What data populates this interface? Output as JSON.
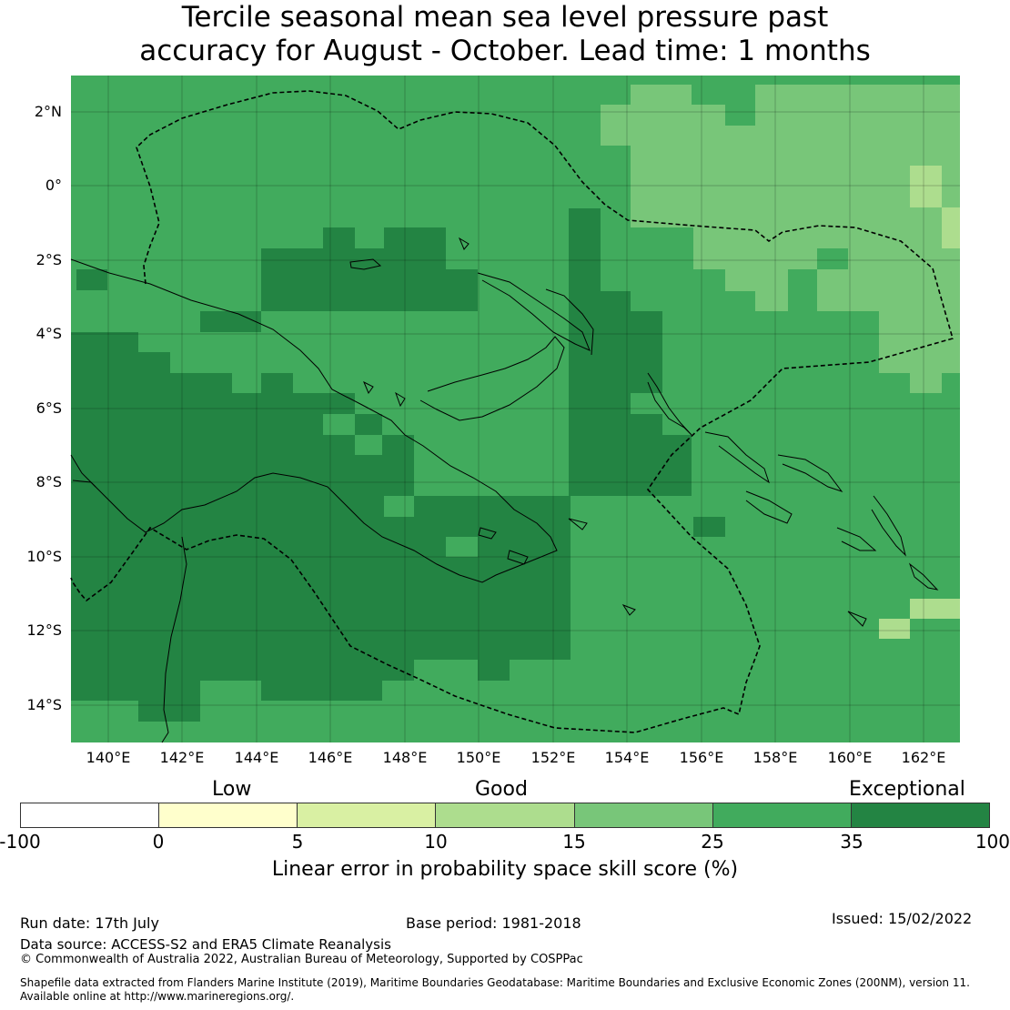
{
  "title": {
    "line1": "Tercile seasonal mean sea level pressure past",
    "line2": "accuracy for August - October. Lead time: 1 months"
  },
  "map": {
    "lon_labels": [
      "140°E",
      "142°E",
      "144°E",
      "146°E",
      "148°E",
      "150°E",
      "152°E",
      "154°E",
      "156°E",
      "158°E",
      "160°E",
      "162°E"
    ],
    "lat_labels": [
      "2°N",
      "0°",
      "2°S",
      "4°S",
      "6°S",
      "8°S",
      "10°S",
      "12°S",
      "14°S"
    ],
    "extent": {
      "lon": [
        139,
        163
      ],
      "lat": [
        -15,
        3
      ]
    }
  },
  "colorbar": {
    "categories": [
      "Low",
      "Good",
      "Exceptional"
    ],
    "ticks": [
      "-100",
      "0",
      "5",
      "10",
      "15",
      "25",
      "35",
      "100"
    ],
    "colors": [
      "#ffffff",
      "#ffffcc",
      "#d9f0a3",
      "#addd8e",
      "#78c679",
      "#41ab5d",
      "#238443"
    ],
    "label": "Linear error in probability space skill score (%)"
  },
  "footer": {
    "run_date": "Run date: 17th July",
    "base_period": "Base period: 1981-2018",
    "issued": "Issued: 15/02/2022",
    "data_source": "Data source: ACCESS-S2 and ERA5 Climate Reanalysis",
    "copyright": "© Commonwealth of Australia 2022, Australian Bureau of Meteorology, Supported by COSPPac",
    "shapefile1": "Shapefile data extracted from Flanders Marine Institute (2019), Maritime Boundaries Geodatabase: Maritime Boundaries and Exclusive Economic Zones (200NM), version 11.",
    "shapefile2": "Available online at http://www.marineregions.org/."
  }
}
